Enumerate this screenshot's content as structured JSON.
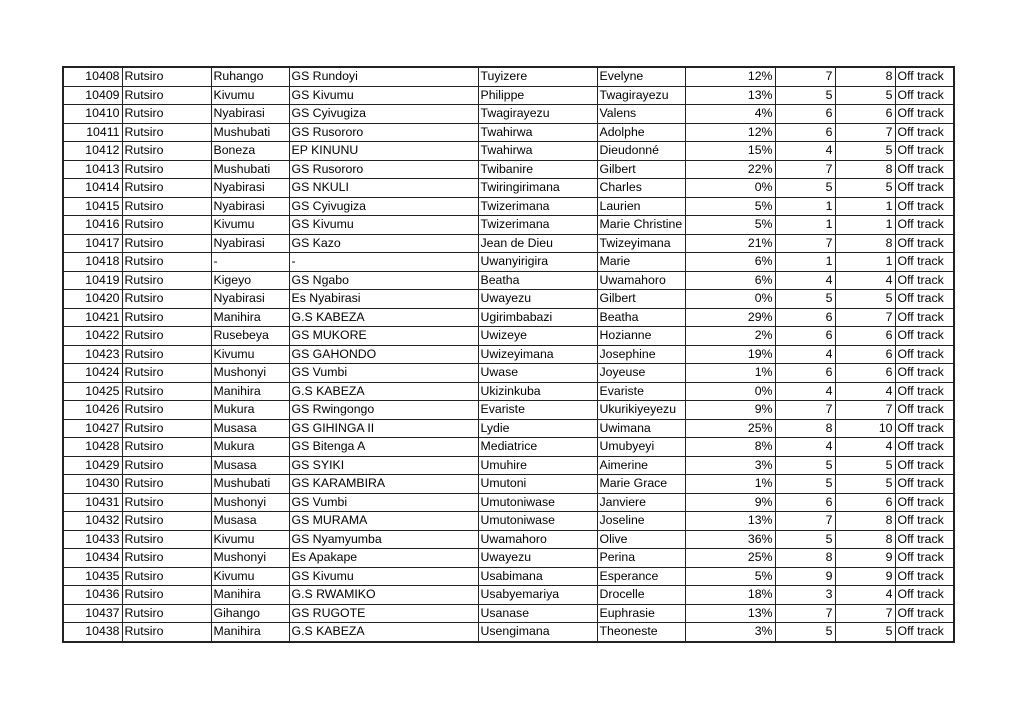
{
  "table": {
    "rows": [
      [
        "10408",
        "Rutsiro",
        "Ruhango",
        "GS Rundoyi",
        "Tuyizere",
        "Evelyne",
        "12%",
        "7",
        "8",
        "Off track"
      ],
      [
        "10409",
        "Rutsiro",
        "Kivumu",
        "GS Kivumu",
        "Philippe",
        "Twagirayezu",
        "13%",
        "5",
        "5",
        "Off track"
      ],
      [
        "10410",
        "Rutsiro",
        "Nyabirasi",
        "GS Cyivugiza",
        "Twagirayezu",
        "Valens",
        "4%",
        "6",
        "6",
        "Off track"
      ],
      [
        "10411",
        "Rutsiro",
        "Mushubati",
        "GS Rusororo",
        "Twahirwa",
        "Adolphe",
        "12%",
        "6",
        "7",
        "Off track"
      ],
      [
        "10412",
        "Rutsiro",
        "Boneza",
        "EP KINUNU",
        "Twahirwa",
        "Dieudonné",
        "15%",
        "4",
        "5",
        "Off track"
      ],
      [
        "10413",
        "Rutsiro",
        "Mushubati",
        "GS Rusororo",
        "Twibanire",
        "Gilbert",
        "22%",
        "7",
        "8",
        "Off track"
      ],
      [
        "10414",
        "Rutsiro",
        "Nyabirasi",
        "GS NKULI",
        "Twiringirimana",
        "Charles",
        "0%",
        "5",
        "5",
        "Off track"
      ],
      [
        "10415",
        "Rutsiro",
        "Nyabirasi",
        "GS Cyivugiza",
        "Twizerimana",
        "Laurien",
        "5%",
        "1",
        "1",
        "Off track"
      ],
      [
        "10416",
        "Rutsiro",
        "Kivumu",
        "GS Kivumu",
        "Twizerimana",
        "Marie Christine",
        "5%",
        "1",
        "1",
        "Off track"
      ],
      [
        "10417",
        "Rutsiro",
        "Nyabirasi",
        "GS Kazo",
        "Jean de Dieu",
        "Twizeyimana",
        "21%",
        "7",
        "8",
        "Off track"
      ],
      [
        "10418",
        "Rutsiro",
        "-",
        "-",
        "Uwanyirigira",
        "Marie",
        "6%",
        "1",
        "1",
        "Off track"
      ],
      [
        "10419",
        "Rutsiro",
        "Kigeyo",
        "GS Ngabo",
        "Beatha",
        "Uwamahoro",
        "6%",
        "4",
        "4",
        "Off track"
      ],
      [
        "10420",
        "Rutsiro",
        "Nyabirasi",
        "Es Nyabirasi",
        "Uwayezu",
        "Gilbert",
        "0%",
        "5",
        "5",
        "Off track"
      ],
      [
        "10421",
        "Rutsiro",
        "Manihira",
        "G.S KABEZA",
        "Ugirimbabazi",
        "Beatha",
        "29%",
        "6",
        "7",
        "Off track"
      ],
      [
        "10422",
        "Rutsiro",
        "Rusebeya",
        "GS MUKORE",
        "Uwizeye",
        "Hozianne",
        "2%",
        "6",
        "6",
        "Off track"
      ],
      [
        "10423",
        "Rutsiro",
        "Kivumu",
        "GS GAHONDO",
        "Uwizeyimana",
        "Josephine",
        "19%",
        "4",
        "6",
        "Off track"
      ],
      [
        "10424",
        "Rutsiro",
        "Mushonyi",
        "GS Vumbi",
        "Uwase",
        "Joyeuse",
        "1%",
        "6",
        "6",
        "Off track"
      ],
      [
        "10425",
        "Rutsiro",
        "Manihira",
        "G.S KABEZA",
        "Ukizinkuba",
        "Evariste",
        "0%",
        "4",
        "4",
        "Off track"
      ],
      [
        "10426",
        "Rutsiro",
        "Mukura",
        "GS Rwingongo",
        "Evariste",
        "Ukurikiyeyezu",
        "9%",
        "7",
        "7",
        "Off track"
      ],
      [
        "10427",
        "Rutsiro",
        "Musasa",
        "GS GIHINGA II",
        "Lydie",
        "Uwimana",
        "25%",
        "8",
        "10",
        "Off track"
      ],
      [
        "10428",
        "Rutsiro",
        "Mukura",
        "GS Bitenga A",
        "Mediatrice",
        "Umubyeyi",
        "8%",
        "4",
        "4",
        "Off track"
      ],
      [
        "10429",
        "Rutsiro",
        "Musasa",
        "GS SYIKI",
        "Umuhire",
        "Aimerine",
        "3%",
        "5",
        "5",
        "Off track"
      ],
      [
        "10430",
        "Rutsiro",
        "Mushubati",
        "GS KARAMBIRA",
        "Umutoni",
        "Marie Grace",
        "1%",
        "5",
        "5",
        "Off track"
      ],
      [
        "10431",
        "Rutsiro",
        "Mushonyi",
        "GS Vumbi",
        "Umutoniwase",
        "Janviere",
        "9%",
        "6",
        "6",
        "Off track"
      ],
      [
        "10432",
        "Rutsiro",
        "Musasa",
        "GS MURAMA",
        "Umutoniwase",
        "Joseline",
        "13%",
        "7",
        "8",
        "Off track"
      ],
      [
        "10433",
        "Rutsiro",
        "Kivumu",
        "GS Nyamyumba",
        "Uwamahoro",
        "Olive",
        "36%",
        "5",
        "8",
        "Off track"
      ],
      [
        "10434",
        "Rutsiro",
        "Mushonyi",
        "Es Apakape",
        "Uwayezu",
        "Perina",
        "25%",
        "8",
        "9",
        "Off track"
      ],
      [
        "10435",
        "Rutsiro",
        "Kivumu",
        "GS Kivumu",
        "Usabimana",
        "Esperance",
        "5%",
        "9",
        "9",
        "Off track"
      ],
      [
        "10436",
        "Rutsiro",
        "Manihira",
        "G.S RWAMIKO",
        "Usabyemariya",
        "Drocelle",
        "18%",
        "3",
        "4",
        "Off track"
      ],
      [
        "10437",
        "Rutsiro",
        "Gihango",
        "GS RUGOTE",
        "Usanase",
        "Euphrasie",
        "13%",
        "7",
        "7",
        "Off track"
      ],
      [
        "10438",
        "Rutsiro",
        "Manihira",
        "G.S KABEZA",
        "Usengimana",
        "Theoneste",
        "3%",
        "5",
        "5",
        "Off track"
      ]
    ]
  }
}
